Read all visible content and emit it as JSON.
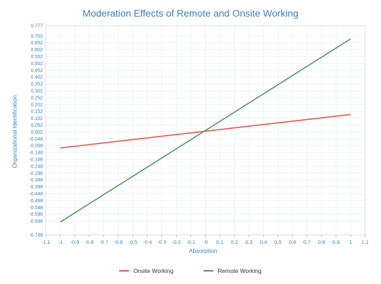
{
  "chart_data": {
    "type": "line",
    "title": "Moderation Effects of Remote and Onsite Working",
    "xlabel": "Absorption",
    "ylabel": "Organizational Identification",
    "xlim": [
      -1.1,
      1.1
    ],
    "ylim": [
      -0.748,
      0.777
    ],
    "x_ticks": [
      "-1.1",
      "-1",
      "-0.9",
      "-0.8",
      "-0.7",
      "-0.6",
      "-0.5",
      "-0.4",
      "-0.3",
      "-0.2",
      "-0.1",
      "-0",
      "0.1",
      "0.2",
      "0.3",
      "0.4",
      "0.5",
      "0.6",
      "0.7",
      "0.8",
      "0.9",
      "1",
      "1.1"
    ],
    "y_ticks": [
      "0.777",
      "0.702",
      "0.652",
      "0.602",
      "0.552",
      "0.502",
      "0.452",
      "0.402",
      "0.352",
      "0.302",
      "0.252",
      "0.202",
      "0.152",
      "0.102",
      "0.052",
      "0.002",
      "-0.048",
      "-0.098",
      "-0.148",
      "-0.198",
      "-0.248",
      "-0.298",
      "-0.348",
      "-0.398",
      "-0.448",
      "-0.498",
      "-0.548",
      "-0.598",
      "-0.648",
      "-0.748"
    ],
    "grid": true,
    "legend_position": "bottom-center",
    "series": [
      {
        "name": "Onsite Working",
        "color": "#e0544e",
        "x": [
          -1,
          1
        ],
        "y": [
          -0.115,
          0.129
        ]
      },
      {
        "name": "Remote Working",
        "color": "#4e9a5a",
        "x": [
          -1,
          1
        ],
        "y": [
          -0.655,
          0.68
        ]
      }
    ]
  }
}
